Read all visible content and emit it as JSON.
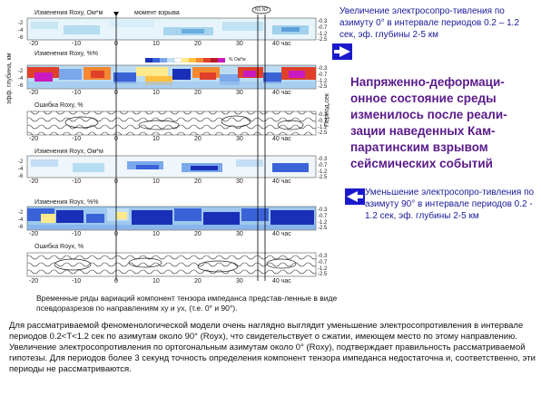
{
  "panels": [
    {
      "title": "Изменения Roxy, Ом*м",
      "extra": "момент взрыва",
      "kind": "light"
    },
    {
      "title": "Изменения Roxy, %%",
      "kind": "strong"
    },
    {
      "title": "Ошибка Roxy, %",
      "kind": "error"
    },
    {
      "title": "Изменения Royx, Ом*м",
      "kind": "light"
    },
    {
      "title": "Изменения Royx, %%",
      "kind": "strong"
    },
    {
      "title": "Ошибка Royx, %",
      "kind": "error"
    }
  ],
  "x_ticks": [
    "-20",
    "-10",
    "0",
    "10",
    "20",
    "30",
    "40 час"
  ],
  "depth_ticks": [
    "-0.3",
    "-0.7",
    "-1.2",
    "-2.5"
  ],
  "y_ticks": [
    "-2",
    "-4",
    "-6"
  ],
  "left_axis_label": "эфф. глубина, км",
  "right_axis_label": "Период,сек",
  "marker_label": "N1 N2",
  "colorbar_label": "% Ом*м",
  "notes": {
    "top": "Увеличение электросопро-тивления по азимуту 0° в интервале периодов 0.2 – 1.2 сек, эф. глубины 2-5 км",
    "middle": "Напряженно-деформаци-онное состояние среды изменилось после реали-зации наведенных Кам-паратинским взрывом сейсмических событий",
    "bottom": "Уменьшение электросопро-тивления по азимуту 90° в интервале периодов 0.2 - 1.2 сек, эф. глубины 2-5 км"
  },
  "caption": "Временные ряды вариаций компонент тензора импеданса представ-ленные в виде псевдоразрезов по направлениям ху и ух, (т.е. 0° и 90°).",
  "paragraph": "Для рассматриваемой феноменологической модели очень наглядно выглядит уменьшение электросопротивления в интервале периодов 0.2<T<1.2 сек по азимутам около 90° (Royx), что свидетельствует о сжатии, имеющем место по этому направлению. Увеличение электросопротивления по ортогональным азимутам около 0° (Roxy), подтверждает правильность рассматриваемой гипотезы. Для периодов более 3 секунд точность определения компонент тензора импеданса недостаточна и, соответственно, эти периоды не рассматриваются.",
  "colors": {
    "note_blue": "#1a1a9a",
    "note_purple": "#5a1a8a",
    "arrow_blue": "#1a1acc"
  }
}
